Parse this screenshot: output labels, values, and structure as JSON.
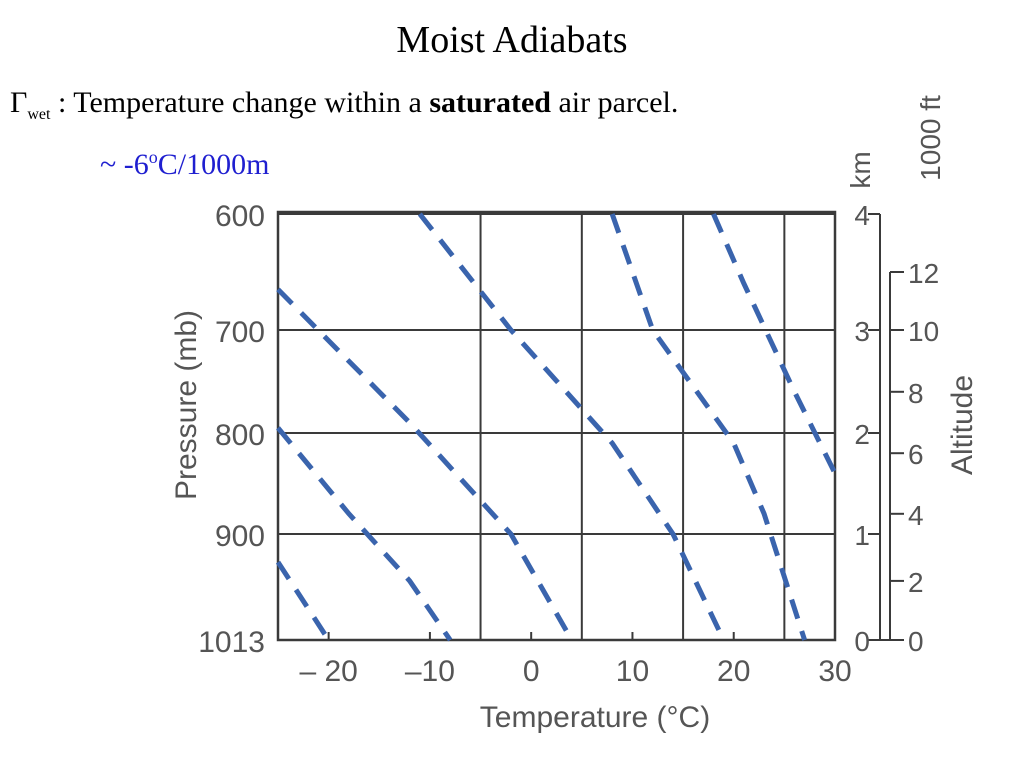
{
  "slide": {
    "title": "Moist Adiabats",
    "definition": {
      "symbol": "Γ",
      "subscript": "wet",
      "text_before": " : Temperature change within a ",
      "bold_word": "saturated",
      "text_after": " air parcel."
    },
    "rate": {
      "prefix": "~ -6",
      "superscript": "o",
      "suffix": "C/1000m"
    }
  },
  "colors": {
    "rate_text": "#1f1fd0",
    "adiabat": "#3a64ad",
    "grid": "#3a3a3a",
    "axis_text": "#555555"
  },
  "chart_data": {
    "type": "line",
    "xlabel": "Temperature (°C)",
    "ylabel": "Pressure (mb)",
    "xlim": [
      -25,
      30
    ],
    "pressure_levels": [
      600,
      700,
      800,
      900,
      1013
    ],
    "x_ticks": [
      -20,
      -10,
      0,
      10,
      20,
      30
    ],
    "x_tick_labels": [
      "– 20",
      "–10",
      "0",
      "10",
      "20",
      "30"
    ],
    "y_ticks": [
      600,
      700,
      800,
      900,
      1013
    ],
    "y_tick_labels": [
      "600",
      "700",
      "800",
      "900",
      "1013"
    ],
    "grid": true,
    "right_axes": [
      {
        "label": "km",
        "ticks": [
          0,
          1,
          2,
          3,
          4
        ],
        "tick_labels": [
          "0",
          "1",
          "2",
          "3",
          "4"
        ],
        "tick_pressures": [
          1013,
          900,
          800,
          700,
          600
        ]
      },
      {
        "label": "1000 ft",
        "title": "Altitude",
        "ticks": [
          0,
          2,
          4,
          6,
          8,
          10,
          12
        ],
        "tick_labels": [
          "0",
          "2",
          "4",
          "6",
          "8",
          "10",
          "12"
        ],
        "tick_pressures": [
          1013,
          950,
          880,
          820,
          760,
          700,
          650
        ]
      }
    ],
    "series": [
      {
        "line_style": "dashed",
        "points": [
          [
            -25,
            930
          ],
          [
            -20,
            1013
          ]
        ]
      },
      {
        "line_style": "dashed",
        "points": [
          [
            -25,
            795
          ],
          [
            -18,
            880
          ],
          [
            -12,
            950
          ],
          [
            -8,
            1013
          ]
        ]
      },
      {
        "line_style": "dashed",
        "points": [
          [
            -25,
            665
          ],
          [
            -12,
            790
          ],
          [
            -2,
            900
          ],
          [
            4,
            1013
          ]
        ]
      },
      {
        "line_style": "dashed",
        "points": [
          [
            -11,
            600
          ],
          [
            -2,
            700
          ],
          [
            8,
            810
          ],
          [
            14,
            900
          ],
          [
            19,
            1013
          ]
        ]
      },
      {
        "line_style": "dashed",
        "points": [
          [
            8,
            600
          ],
          [
            12,
            700
          ],
          [
            20,
            810
          ],
          [
            23,
            880
          ],
          [
            27,
            1013
          ]
        ]
      },
      {
        "line_style": "dashed",
        "points": [
          [
            18,
            600
          ],
          [
            21,
            660
          ],
          [
            26,
            760
          ],
          [
            30,
            840
          ]
        ]
      }
    ]
  }
}
